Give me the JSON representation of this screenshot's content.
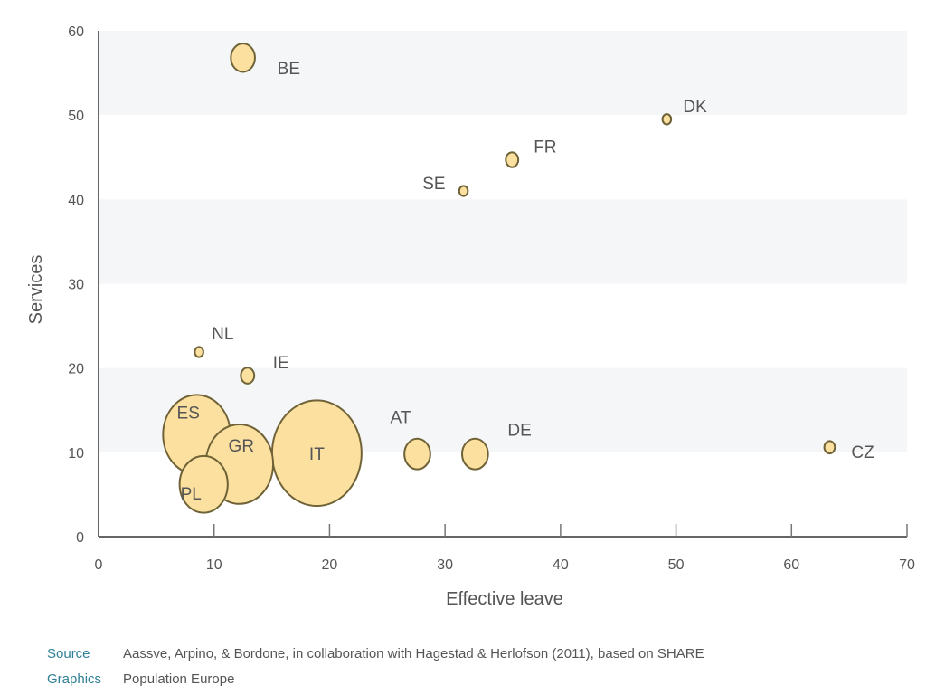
{
  "chart_data": {
    "type": "bubble",
    "xlabel": "Effective leave",
    "ylabel": "Services",
    "xlim": [
      0,
      70
    ],
    "ylim": [
      0,
      60
    ],
    "x_ticks": [
      0,
      10,
      20,
      30,
      40,
      50,
      60,
      70
    ],
    "y_ticks": [
      0,
      10,
      20,
      30,
      40,
      50,
      60
    ],
    "grid": "alternating horizontal bands",
    "colors": {
      "bubble_fill": "#fbe0a0",
      "bubble_stroke": "#6e6236",
      "band": "#f5f6f8",
      "axis": "#333333"
    },
    "points": [
      {
        "label": "BE",
        "x": 12.5,
        "y": 56.8,
        "size": 2.5
      },
      {
        "label": "DK",
        "x": 49.2,
        "y": 49.5,
        "size": 0.9
      },
      {
        "label": "FR",
        "x": 35.8,
        "y": 44.7,
        "size": 1.3
      },
      {
        "label": "SE",
        "x": 31.6,
        "y": 41.0,
        "size": 0.9
      },
      {
        "label": "NL",
        "x": 8.7,
        "y": 21.9,
        "size": 0.9
      },
      {
        "label": "IE",
        "x": 12.9,
        "y": 19.1,
        "size": 1.4
      },
      {
        "label": "ES",
        "x": 8.5,
        "y": 12.1,
        "size": 7.0
      },
      {
        "label": "GR",
        "x": 12.2,
        "y": 8.6,
        "size": 7.0
      },
      {
        "label": "PL",
        "x": 9.1,
        "y": 6.2,
        "size": 5.0
      },
      {
        "label": "IT",
        "x": 18.9,
        "y": 9.9,
        "size": 9.3
      },
      {
        "label": "AT",
        "x": 27.6,
        "y": 9.8,
        "size": 2.7
      },
      {
        "label": "DE",
        "x": 32.6,
        "y": 9.8,
        "size": 2.7
      },
      {
        "label": "CZ",
        "x": 63.3,
        "y": 10.6,
        "size": 1.1
      }
    ]
  },
  "footer": {
    "source_key": "Source",
    "source_text": "Aassve, Arpino, & Bordone, in collaboration with Hagestad & Herlofson (2011), based on SHARE",
    "graphics_key": "Graphics",
    "graphics_text": "Population Europe"
  }
}
